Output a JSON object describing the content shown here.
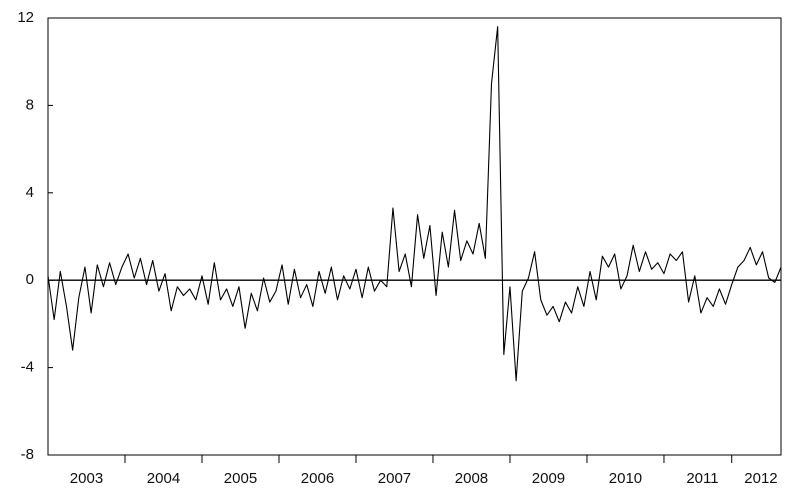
{
  "chart_data": {
    "type": "line",
    "x": [
      2003,
      2003.08,
      2003.16,
      2003.24,
      2003.32,
      2003.4,
      2003.48,
      2003.56,
      2003.64,
      2003.72,
      2003.8,
      2003.88,
      2003.96,
      2004.04,
      2004.12,
      2004.2,
      2004.28,
      2004.36,
      2004.44,
      2004.52,
      2004.6,
      2004.68,
      2004.76,
      2004.84,
      2004.92,
      2005,
      2005.08,
      2005.16,
      2005.24,
      2005.32,
      2005.4,
      2005.48,
      2005.56,
      2005.64,
      2005.72,
      2005.8,
      2005.88,
      2005.96,
      2006.04,
      2006.12,
      2006.2,
      2006.28,
      2006.36,
      2006.44,
      2006.52,
      2006.6,
      2006.68,
      2006.76,
      2006.84,
      2006.92,
      2007,
      2007.08,
      2007.16,
      2007.24,
      2007.32,
      2007.4,
      2007.48,
      2007.56,
      2007.64,
      2007.72,
      2007.8,
      2007.88,
      2007.96,
      2008.04,
      2008.12,
      2008.2,
      2008.28,
      2008.36,
      2008.44,
      2008.52,
      2008.6,
      2008.68,
      2008.76,
      2008.84,
      2008.92,
      2009,
      2009.08,
      2009.16,
      2009.24,
      2009.32,
      2009.4,
      2009.48,
      2009.56,
      2009.64,
      2009.72,
      2009.8,
      2009.88,
      2009.96,
      2010.04,
      2010.12,
      2010.2,
      2010.28,
      2010.36,
      2010.44,
      2010.52,
      2010.6,
      2010.68,
      2010.76,
      2010.84,
      2010.92,
      2011,
      2011.08,
      2011.16,
      2011.24,
      2011.32,
      2011.4,
      2011.48,
      2011.56,
      2011.64,
      2011.72,
      2011.8,
      2011.88,
      2011.96,
      2012.04,
      2012.12,
      2012.2,
      2012.28,
      2012.36,
      2012.44,
      2012.52
    ],
    "values": [
      0.2,
      -1.8,
      0.4,
      -1.2,
      -3.2,
      -0.8,
      0.6,
      -1.5,
      0.7,
      -0.3,
      0.8,
      -0.2,
      0.6,
      1.2,
      0.1,
      1.0,
      -0.2,
      0.9,
      -0.5,
      0.3,
      -1.4,
      -0.3,
      -0.7,
      -0.4,
      -0.9,
      0.2,
      -1.1,
      0.8,
      -0.9,
      -0.4,
      -1.2,
      -0.3,
      -2.2,
      -0.6,
      -1.4,
      0.1,
      -1.0,
      -0.5,
      0.7,
      -1.1,
      0.5,
      -0.8,
      -0.2,
      -1.2,
      0.4,
      -0.6,
      0.6,
      -0.9,
      0.2,
      -0.4,
      0.5,
      -0.8,
      0.6,
      -0.5,
      0.0,
      -0.3,
      3.3,
      0.4,
      1.2,
      -0.3,
      3.0,
      1.0,
      2.5,
      -0.7,
      2.2,
      0.6,
      3.2,
      0.9,
      1.8,
      1.2,
      2.6,
      1.0,
      9.0,
      11.6,
      -3.4,
      -0.3,
      -4.6,
      -0.5,
      0.1,
      1.3,
      -0.9,
      -1.6,
      -1.2,
      -1.9,
      -1.0,
      -1.5,
      -0.3,
      -1.2,
      0.4,
      -0.9,
      1.1,
      0.6,
      1.2,
      -0.4,
      0.2,
      1.6,
      0.4,
      1.3,
      0.5,
      0.8,
      0.3,
      1.2,
      0.9,
      1.3,
      -1.0,
      0.2,
      -1.5,
      -0.8,
      -1.2,
      -0.4,
      -1.1,
      -0.2,
      0.6,
      0.9,
      1.5,
      0.7,
      1.3,
      0.1,
      -0.1,
      0.6
    ],
    "color": "#000000",
    "xlim": [
      2003,
      2012.52
    ],
    "xticks": [
      {
        "value": 2003.5,
        "label": "2003"
      },
      {
        "value": 2004.5,
        "label": "2004"
      },
      {
        "value": 2005.5,
        "label": "2005"
      },
      {
        "value": 2006.5,
        "label": "2006"
      },
      {
        "value": 2007.5,
        "label": "2007"
      },
      {
        "value": 2008.5,
        "label": "2008"
      },
      {
        "value": 2009.5,
        "label": "2009"
      },
      {
        "value": 2010.5,
        "label": "2010"
      },
      {
        "value": 2011.5,
        "label": "2011"
      },
      {
        "value": 2012.26,
        "label": "2012"
      }
    ],
    "ylim": [
      -8,
      12
    ],
    "yticks": [
      -8,
      -4,
      0,
      4,
      8,
      12
    ],
    "zero_line": true
  }
}
